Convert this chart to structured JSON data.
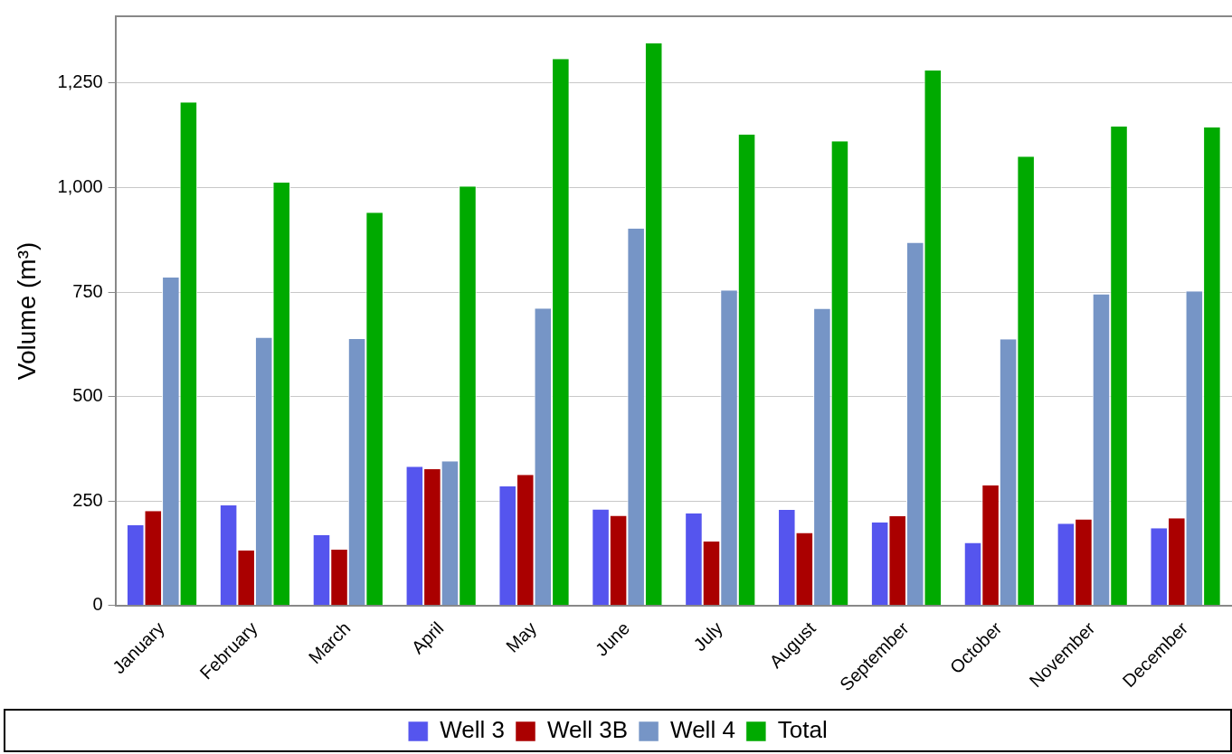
{
  "chart_data": {
    "type": "bar",
    "ylabel": "Volume (m³)",
    "categories": [
      "January",
      "February",
      "March",
      "April",
      "May",
      "June",
      "July",
      "August",
      "September",
      "October",
      "November",
      "December"
    ],
    "series": [
      {
        "name": "Well 3",
        "color": "#5555ee",
        "values": [
          193,
          240,
          169,
          332,
          285,
          230,
          221,
          229,
          199,
          150,
          196,
          185
        ]
      },
      {
        "name": "Well 3B",
        "color": "#aa0000",
        "values": [
          226,
          132,
          134,
          327,
          313,
          215,
          153,
          174,
          214,
          288,
          206,
          209
        ]
      },
      {
        "name": "Well 4",
        "color": "#7695c6",
        "values": [
          785,
          641,
          638,
          345,
          711,
          902,
          754,
          710,
          868,
          637,
          745,
          752
        ]
      },
      {
        "name": "Total",
        "color": "#00aa00",
        "values": [
          1204,
          1012,
          940,
          1003,
          1308,
          1345,
          1127,
          1111,
          1280,
          1074,
          1146,
          1144
        ]
      }
    ],
    "ylim": [
      0,
      1410
    ],
    "yticks": [
      0,
      {
        "value": 250,
        "label": "250"
      },
      {
        "value": 500,
        "label": "500"
      },
      {
        "value": 750,
        "label": "750"
      },
      {
        "value": 1000,
        "label": "1,000"
      },
      {
        "value": 1250,
        "label": "1,250"
      }
    ],
    "grid": "y",
    "legend": "bottom"
  }
}
